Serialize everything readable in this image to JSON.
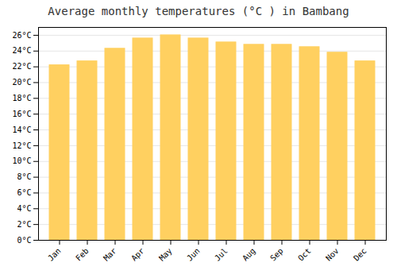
{
  "chart_data": {
    "type": "bar",
    "title": "Average monthly temperatures (°C ) in Bambang",
    "categories": [
      "Jan",
      "Feb",
      "Mar",
      "Apr",
      "May",
      "Jun",
      "Jul",
      "Aug",
      "Sep",
      "Oct",
      "Nov",
      "Dec"
    ],
    "values": [
      22.2,
      22.7,
      24.3,
      25.6,
      26.0,
      25.6,
      25.1,
      24.8,
      24.8,
      24.5,
      23.8,
      22.7
    ],
    "color": "#FFD060",
    "ylim": [
      0,
      27
    ],
    "yticks": [
      {
        "value": 0,
        "label": "0°C"
      },
      {
        "value": 2,
        "label": "2°C"
      },
      {
        "value": 4,
        "label": "4°C"
      },
      {
        "value": 6,
        "label": "6°C"
      },
      {
        "value": 8,
        "label": "8°C"
      },
      {
        "value": 10,
        "label": "10°C"
      },
      {
        "value": 12,
        "label": "12°C"
      },
      {
        "value": 14,
        "label": "14°C"
      },
      {
        "value": 16,
        "label": "16°C"
      },
      {
        "value": 18,
        "label": "18°C"
      },
      {
        "value": 20,
        "label": "20°C"
      },
      {
        "value": 22,
        "label": "22°C"
      },
      {
        "value": 24,
        "label": "24°C"
      },
      {
        "value": 26,
        "label": "26°C"
      }
    ],
    "grid": true
  }
}
